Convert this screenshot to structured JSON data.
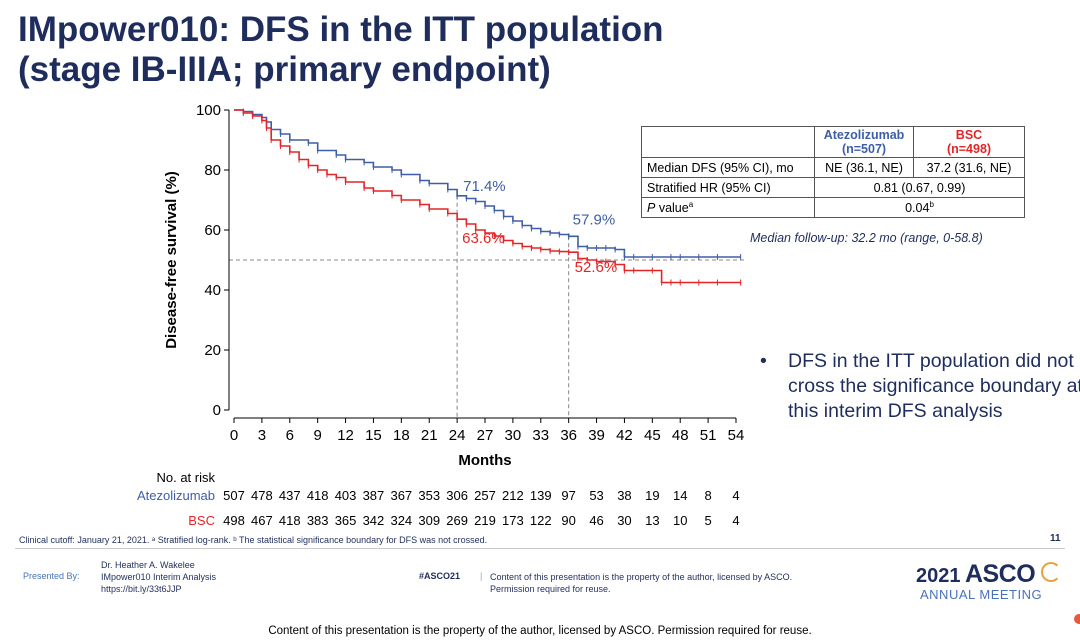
{
  "slide": {
    "title_line1": "IMpower010: DFS in the ITT population",
    "title_line2": "(stage IB-IIIA; primary endpoint)",
    "page_number": "11"
  },
  "chart_data": {
    "type": "line",
    "title": "DFS in the ITT population",
    "xlabel": "Months",
    "ylabel": "Disease-free survival (%)",
    "xlim": [
      0,
      54
    ],
    "ylim": [
      0,
      100
    ],
    "x_ticks": [
      0,
      3,
      6,
      9,
      12,
      15,
      18,
      21,
      24,
      27,
      30,
      33,
      36,
      39,
      42,
      45,
      48,
      51,
      54
    ],
    "y_ticks": [
      0,
      20,
      40,
      60,
      80,
      100
    ],
    "reference_line_y": 50,
    "reference_lines_x": [
      24,
      36
    ],
    "series": [
      {
        "name": "Atezolizumab",
        "color": "#3f5ea6",
        "x": [
          0,
          1,
          2,
          3,
          3.5,
          4,
          5,
          6,
          8,
          9,
          11,
          12,
          14,
          15,
          17,
          18,
          20,
          21,
          23,
          24,
          25,
          26,
          27,
          28,
          29,
          30,
          31,
          32,
          33,
          34,
          35,
          36,
          37,
          38,
          39,
          40,
          41,
          42,
          43,
          45,
          47,
          48,
          50,
          52,
          54.5
        ],
        "y": [
          100,
          99.5,
          98.5,
          97.5,
          96,
          93.5,
          92,
          90,
          89,
          86.5,
          85,
          83.5,
          82.5,
          81,
          80,
          78.5,
          76.5,
          75.5,
          73.5,
          71.4,
          70.5,
          69.5,
          68,
          66.5,
          64.5,
          63,
          61.5,
          60.5,
          59.5,
          59,
          58.5,
          57.9,
          54.5,
          54,
          54,
          54,
          53.5,
          51,
          51,
          51,
          51,
          51,
          51,
          51,
          51
        ]
      },
      {
        "name": "BSC",
        "color": "#e32528",
        "x": [
          0,
          1,
          2,
          3,
          3.5,
          4,
          5,
          6,
          7,
          8,
          9,
          10,
          11,
          12,
          14,
          15,
          17,
          18,
          20,
          21,
          23,
          24,
          25,
          26,
          27,
          28,
          29,
          30,
          31,
          32,
          33,
          34,
          35,
          36,
          37,
          38,
          39,
          40,
          41,
          42,
          43,
          45,
          46,
          47,
          48,
          50,
          52,
          54.5
        ],
        "y": [
          100,
          99,
          98,
          96.5,
          94,
          90,
          88,
          86,
          83.5,
          81.5,
          80,
          78.5,
          77.5,
          76,
          74,
          73,
          71.5,
          70,
          68.5,
          67,
          65.5,
          63.6,
          62,
          60,
          59,
          58,
          56.5,
          55.5,
          54.5,
          54,
          53.5,
          53,
          52.8,
          52.6,
          50.5,
          50,
          49.5,
          49.5,
          48.5,
          46.5,
          46.5,
          46.5,
          42.5,
          42.5,
          42.5,
          42.5,
          42.5,
          42.5
        ]
      }
    ],
    "annotations": [
      {
        "text": "71.4%",
        "series": "Atezolizumab",
        "x": 24,
        "y": 71.4
      },
      {
        "text": "57.9%",
        "series": "Atezolizumab",
        "x": 36,
        "y": 57.9
      },
      {
        "text": "63.6%",
        "series": "BSC",
        "x": 24,
        "y": 63.6
      },
      {
        "text": "52.6%",
        "series": "BSC",
        "x": 36,
        "y": 52.6
      }
    ],
    "risk_table": {
      "header": "No. at risk",
      "rows": [
        {
          "name": "Atezolizumab",
          "values": [
            507,
            478,
            437,
            418,
            403,
            387,
            367,
            353,
            306,
            257,
            212,
            139,
            97,
            53,
            38,
            19,
            14,
            8,
            4
          ]
        },
        {
          "name": "BSC",
          "values": [
            498,
            467,
            418,
            383,
            365,
            342,
            324,
            309,
            269,
            219,
            173,
            122,
            90,
            46,
            30,
            13,
            10,
            5,
            4
          ]
        }
      ]
    }
  },
  "stats_table": {
    "col1_header": "Atezolizumab",
    "col1_n": "(n=507)",
    "col2_header": "BSC",
    "col2_n": "(n=498)",
    "row1_label": "Median DFS (95% CI), mo",
    "row1_atz": "NE (36.1, NE)",
    "row1_bsc": "37.2 (31.6, NE)",
    "row2_label": "Stratified HR (95% CI)",
    "row2_value": "0.81 (0.67, 0.99)",
    "row3_label_italic": "P",
    "row3_label_rest": " value",
    "row3_label_sup": "a",
    "row3_value": "0.04",
    "row3_value_sup": "b"
  },
  "followup_text": "Median follow-up: 32.2 mo (range, 0-58.8)",
  "bullet": {
    "symbol": "•",
    "text": "DFS in the ITT population did not cross the significance boundary at this interim DFS analysis"
  },
  "footnote": "Clinical cutoff: January 21, 2021. ᵃ Stratified log-rank. ᵇ The statistical significance boundary for DFS was not crossed.",
  "footer": {
    "presented_by": "Presented By:",
    "presenter_name": "Dr. Heather A. Wakelee",
    "presenter_talk": "IMpower010 Interim Analysis",
    "presenter_link": "https://bit.ly/33t6JJP",
    "hashtag": "#ASCO21",
    "divider": "|",
    "content_line1": "Content of this presentation is the property of the author, licensed by ASCO.",
    "content_line2": "Permission required for reuse.",
    "logo_year": "2021",
    "logo_word": "ASCO",
    "logo_sub": "ANNUAL MEETING"
  },
  "copyright": "Content of this presentation is the property of the author, licensed by ASCO. Permission required for reuse."
}
